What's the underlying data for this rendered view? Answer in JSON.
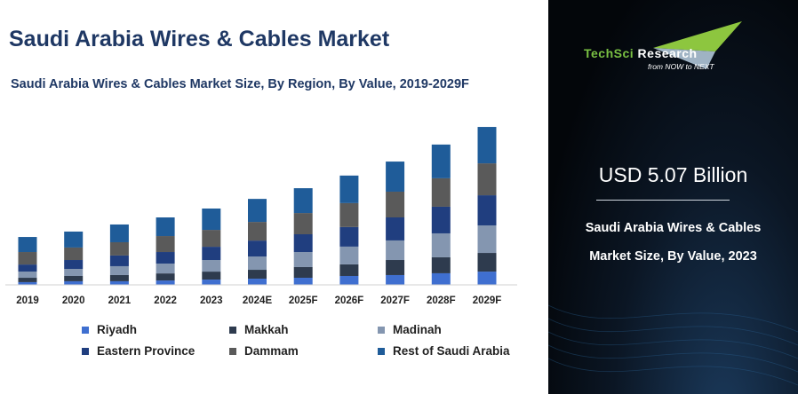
{
  "header": {
    "title": "Saudi Arabia Wires & Cables Market",
    "subtitle": "Saudi Arabia Wires & Cables Market Size, By Region, By Value, 2019-2029F"
  },
  "chart_data": {
    "type": "bar",
    "stacked": true,
    "title": "Saudi Arabia Wires & Cables Market Size, By Region, By Value, 2019-2029F",
    "xlabel": "",
    "ylabel": "",
    "ylim": [
      0,
      11.2
    ],
    "grid": false,
    "legend_placement": "bottom",
    "categories": [
      "2019",
      "2020",
      "2021",
      "2022",
      "2023",
      "2024E",
      "2025F",
      "2026F",
      "2027F",
      "2028F",
      "2029F"
    ],
    "series": [
      {
        "name": "Riyadh",
        "color": "#3f6fd0",
        "values": [
          0.18,
          0.24,
          0.24,
          0.29,
          0.35,
          0.41,
          0.47,
          0.59,
          0.65,
          0.77,
          0.88
        ]
      },
      {
        "name": "Makkah",
        "color": "#2e3b4e",
        "values": [
          0.29,
          0.35,
          0.41,
          0.47,
          0.53,
          0.59,
          0.71,
          0.77,
          1.0,
          1.06,
          1.24
        ]
      },
      {
        "name": "Madinah",
        "color": "#8496b0",
        "values": [
          0.41,
          0.47,
          0.59,
          0.65,
          0.77,
          0.88,
          1.0,
          1.18,
          1.3,
          1.59,
          1.83
        ]
      },
      {
        "name": "Eastern Province",
        "color": "#203e7f",
        "values": [
          0.47,
          0.59,
          0.71,
          0.77,
          0.88,
          1.06,
          1.18,
          1.3,
          1.53,
          1.77,
          2.0
        ]
      },
      {
        "name": "Dammam",
        "color": "#5a5a5a",
        "values": [
          0.83,
          0.83,
          0.88,
          1.06,
          1.12,
          1.24,
          1.41,
          1.59,
          1.71,
          1.89,
          2.12
        ]
      },
      {
        "name": "Rest of Saudi Arabia",
        "color": "#1f5c99",
        "values": [
          1.0,
          1.06,
          1.18,
          1.24,
          1.42,
          1.53,
          1.65,
          1.83,
          2.0,
          2.24,
          2.42
        ]
      }
    ]
  },
  "sidepanel": {
    "logo": {
      "name_green": "TechSci",
      "name_white": " Research",
      "tagline": "from NOW to NEXT"
    },
    "value": "USD 5.07 Billion",
    "desc_line1": "Saudi Arabia Wires & Cables",
    "desc_line2": "Market Size, By Value, 2023"
  }
}
